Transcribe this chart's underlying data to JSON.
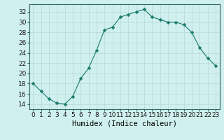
{
  "x": [
    0,
    1,
    2,
    3,
    4,
    5,
    6,
    7,
    8,
    9,
    10,
    11,
    12,
    13,
    14,
    15,
    16,
    17,
    18,
    19,
    20,
    21,
    22,
    23
  ],
  "y": [
    18,
    16.5,
    15,
    14.2,
    14,
    15.5,
    19,
    21,
    24.5,
    28.5,
    29,
    31,
    31.5,
    32,
    32.5,
    31,
    30.5,
    30,
    30,
    29.5,
    28,
    25,
    23,
    21.5
  ],
  "line_color": "#1a7a6e",
  "marker": "D",
  "marker_size": 2.5,
  "bg_color": "#cff0ee",
  "grid_color": "#b8d8d4",
  "xlabel": "Humidex (Indice chaleur)",
  "xlim": [
    -0.5,
    23.5
  ],
  "ylim": [
    13,
    33.5
  ],
  "yticks": [
    14,
    16,
    18,
    20,
    22,
    24,
    26,
    28,
    30,
    32
  ],
  "xticks": [
    0,
    1,
    2,
    3,
    4,
    5,
    6,
    7,
    8,
    9,
    10,
    11,
    12,
    13,
    14,
    15,
    16,
    17,
    18,
    19,
    20,
    21,
    22,
    23
  ],
  "xlabel_fontsize": 7.5,
  "tick_fontsize": 6.5
}
